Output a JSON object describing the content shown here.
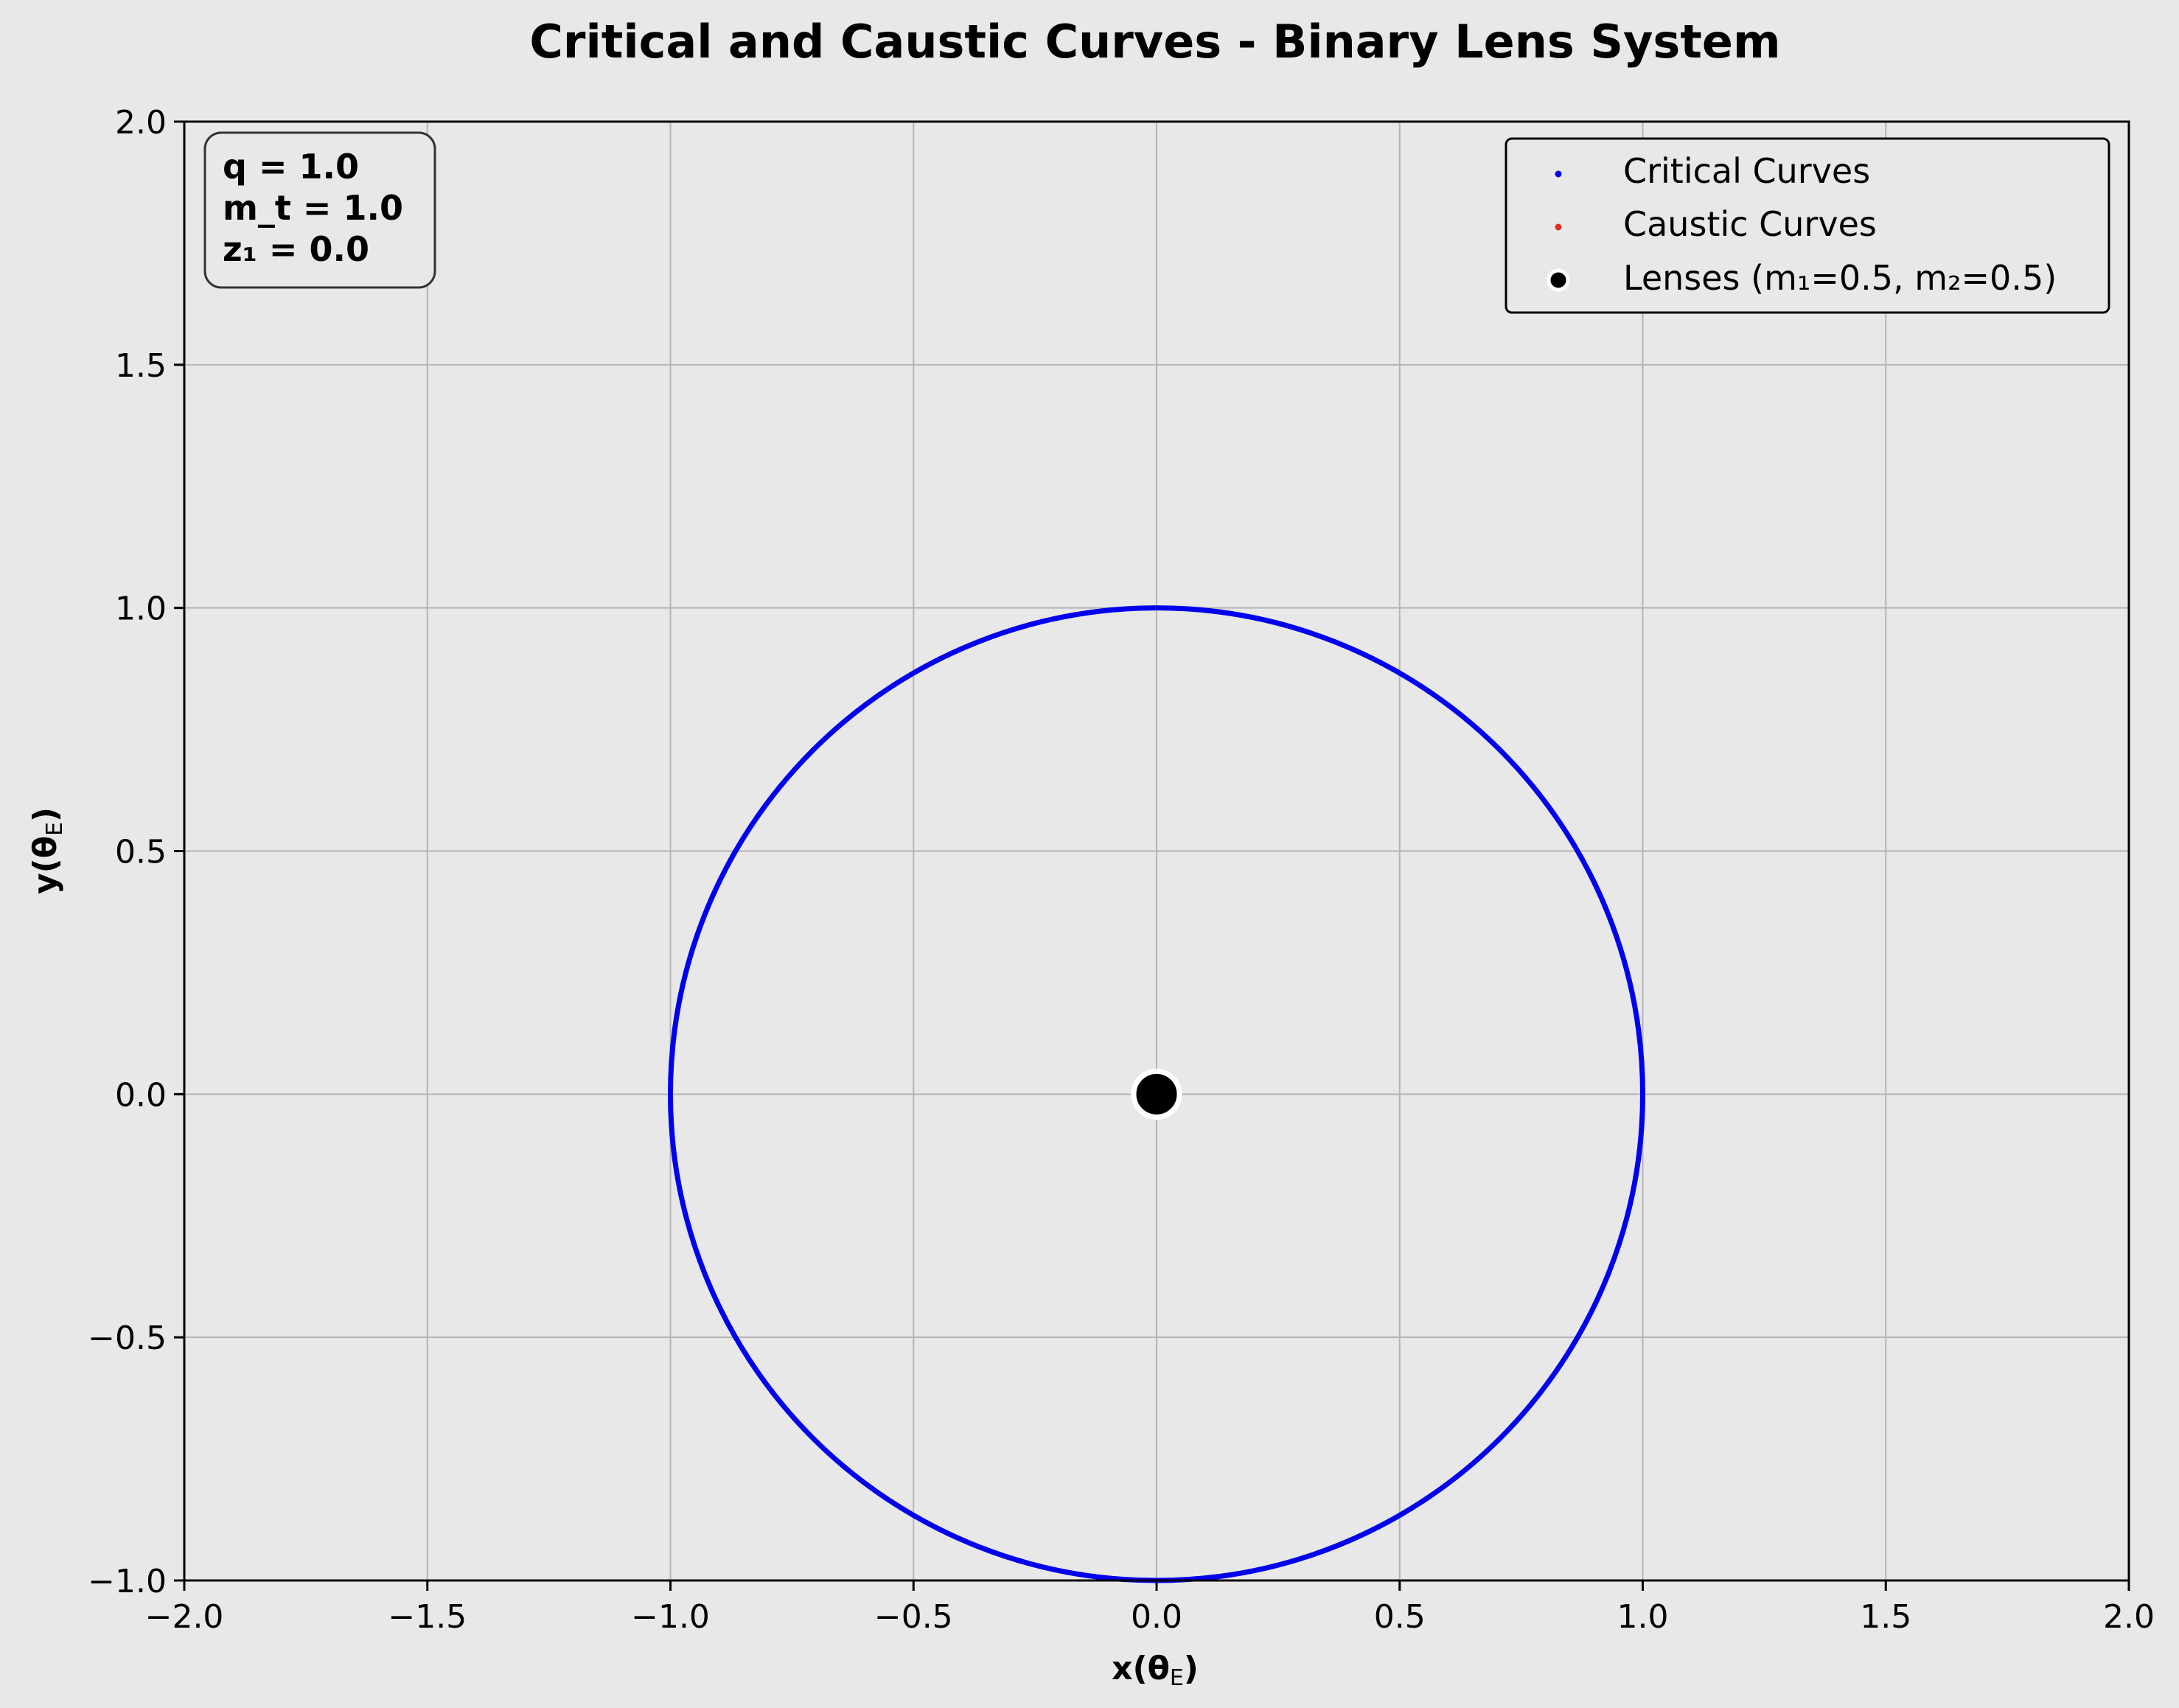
{
  "chart_data": {
    "type": "scatter",
    "title": "Critical and Caustic Curves - Binary Lens System",
    "xlabel": "x(θE)",
    "ylabel": "y(θE)",
    "xlabel_main": "x(θ",
    "xlabel_sub": "E",
    "xlabel_close": ")",
    "ylabel_main": "y(θ",
    "ylabel_sub": "E",
    "ylabel_close": ")",
    "xlim": [
      -2.0,
      2.0
    ],
    "ylim": [
      -1.0,
      2.0
    ],
    "xticks": [
      -2.0,
      -1.5,
      -1.0,
      -0.5,
      0.0,
      0.5,
      1.0,
      1.5,
      2.0
    ],
    "yticks": [
      -1.0,
      -0.5,
      0.0,
      0.5,
      1.0,
      1.5,
      2.0
    ],
    "xtick_labels": [
      "−2.0",
      "−1.5",
      "−1.0",
      "−0.5",
      "0.0",
      "0.5",
      "1.0",
      "1.5",
      "2.0"
    ],
    "ytick_labels": [
      "−1.0",
      "−0.5",
      "0.0",
      "0.5",
      "1.0",
      "1.5",
      "2.0"
    ],
    "grid": true,
    "legend_position": "top-right",
    "background_color": "#e8e8e8",
    "series": [
      {
        "name": "Critical Curves",
        "kind": "circle-curve",
        "center": [
          0.0,
          0.0
        ],
        "radius": 1.0,
        "color": "#0000ee"
      },
      {
        "name": "Caustic Curves",
        "kind": "points",
        "points": [
          [
            0.0,
            0.0
          ]
        ],
        "color": "#e03020"
      },
      {
        "name": "Lenses (m₁=0.5, m₂=0.5)",
        "kind": "points",
        "points": [
          [
            0.0,
            0.0
          ],
          [
            0.0,
            0.0
          ]
        ],
        "color": "#000000",
        "edge_color": "#ffffff"
      }
    ],
    "annotations": [
      "q = 1.0",
      "m_t = 1.0",
      "z₁ = 0.0"
    ]
  }
}
